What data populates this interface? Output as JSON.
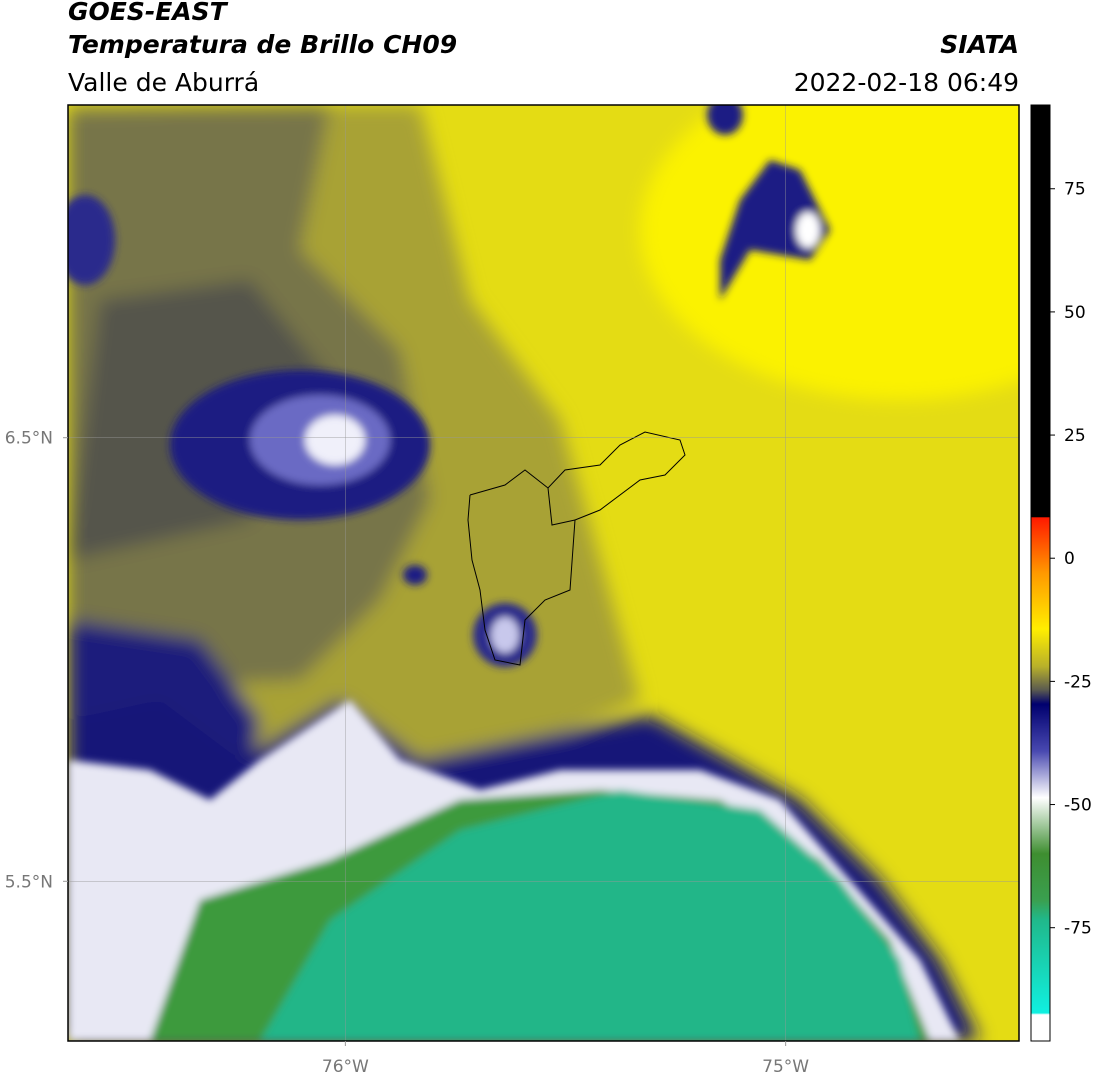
{
  "header": {
    "title": "GOES-EAST",
    "subtitle": "Temperatura de Brillo CH09",
    "region": "Valle de Aburrá",
    "source": "SIATA",
    "timestamp": "2022-02-18 06:49"
  },
  "map": {
    "xlim": [
      -76.63,
      -74.47
    ],
    "ylim": [
      5.14,
      7.25
    ],
    "xticks": [
      {
        "value": -76,
        "label": "76°W"
      },
      {
        "value": -75,
        "label": "75°W"
      }
    ],
    "yticks": [
      {
        "value": 6.5,
        "label": "6.5°N"
      },
      {
        "value": 5.5,
        "label": "5.5°N"
      }
    ],
    "grid": true
  },
  "colorbar": {
    "lim": [
      -98,
      92
    ],
    "ticks": [
      75,
      50,
      25,
      0,
      -25,
      -50,
      -75
    ]
  }
}
